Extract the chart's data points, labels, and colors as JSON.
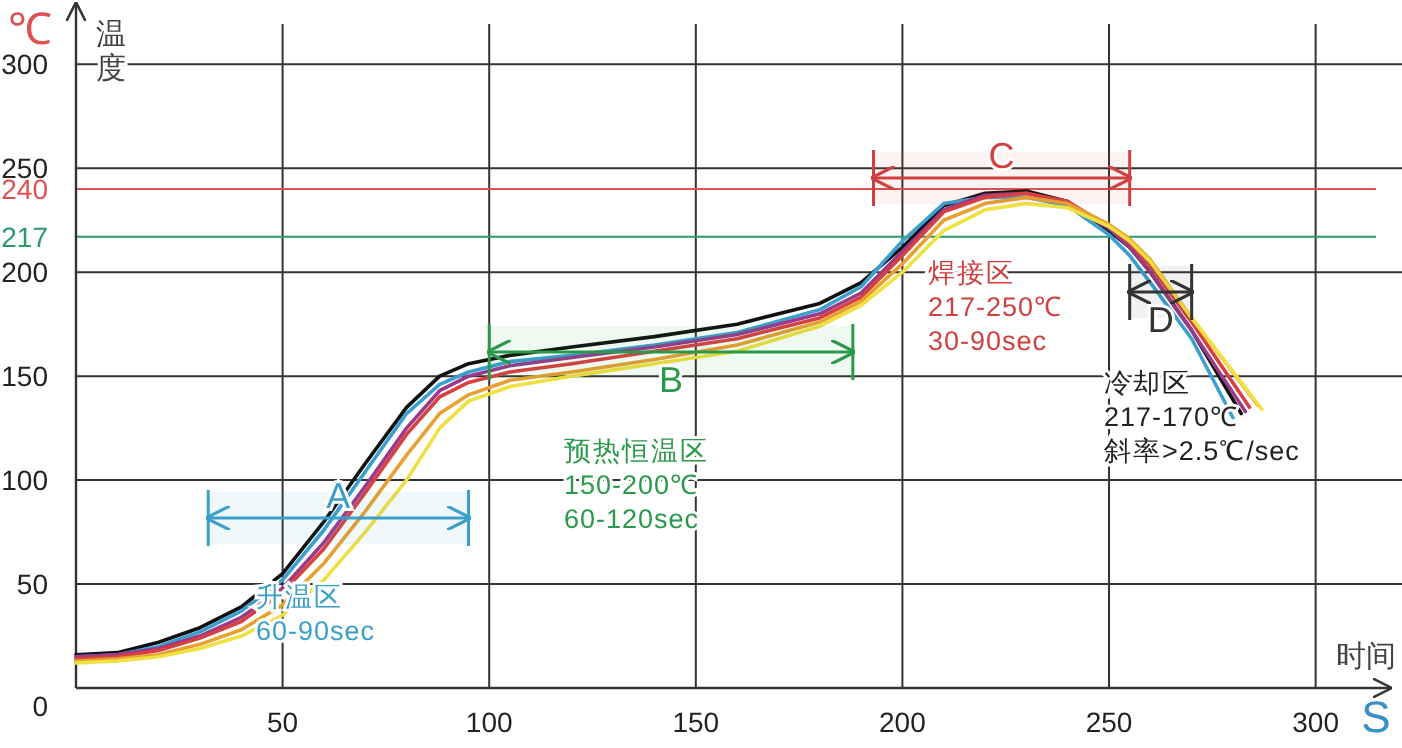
{
  "chart_data": {
    "type": "line",
    "xlabel": "时间",
    "ylabel": "温度",
    "xlim": [
      0,
      318
    ],
    "ylim": [
      0,
      329
    ],
    "xticks": [
      50,
      100,
      150,
      200,
      250,
      300
    ],
    "yticks": [
      0,
      50,
      100,
      150,
      200,
      250,
      300
    ],
    "grid": true,
    "legend": false,
    "marker": "none",
    "line_style": "solid",
    "series": [
      {
        "color": "#111111",
        "x": [
          0,
          10,
          20,
          30,
          40,
          50,
          60,
          70,
          80,
          88,
          95,
          105,
          120,
          140,
          160,
          180,
          190,
          200,
          210,
          220,
          230,
          240,
          250,
          255,
          260,
          270,
          282
        ],
        "values": [
          16,
          17,
          22,
          29,
          39,
          55,
          80,
          108,
          135,
          150,
          156,
          160,
          164,
          169,
          175,
          185,
          195,
          212,
          232,
          238,
          239,
          234,
          220,
          212,
          200,
          172,
          132
        ]
      },
      {
        "color": "#3b9fd0",
        "x": [
          0,
          10,
          20,
          30,
          40,
          50,
          60,
          70,
          80,
          88,
          95,
          105,
          120,
          140,
          160,
          180,
          190,
          200,
          210,
          220,
          230,
          240,
          250,
          255,
          260,
          270,
          280
        ],
        "values": [
          15,
          16,
          20,
          27,
          37,
          52,
          76,
          104,
          132,
          146,
          152,
          157,
          160,
          165,
          171,
          182,
          193,
          215,
          233,
          236,
          236,
          232,
          218,
          208,
          195,
          168,
          130
        ]
      },
      {
        "color": "#9a3a8a",
        "x": [
          0,
          10,
          20,
          30,
          40,
          50,
          60,
          70,
          80,
          88,
          95,
          105,
          120,
          140,
          160,
          180,
          190,
          200,
          210,
          220,
          230,
          240,
          250,
          255,
          260,
          270,
          283
        ],
        "values": [
          15,
          16,
          19,
          25,
          34,
          48,
          70,
          97,
          125,
          143,
          150,
          155,
          159,
          164,
          170,
          180,
          190,
          210,
          230,
          237,
          238,
          233,
          221,
          212,
          200,
          172,
          133
        ]
      },
      {
        "color": "#d84040",
        "x": [
          0,
          10,
          20,
          30,
          40,
          50,
          60,
          70,
          80,
          88,
          95,
          105,
          120,
          140,
          160,
          180,
          190,
          200,
          210,
          220,
          230,
          240,
          250,
          255,
          260,
          270,
          284
        ],
        "values": [
          14,
          15,
          18,
          24,
          32,
          46,
          67,
          94,
          122,
          140,
          147,
          152,
          156,
          162,
          168,
          178,
          188,
          208,
          229,
          236,
          238,
          234,
          222,
          214,
          203,
          176,
          135
        ]
      },
      {
        "color": "#e8a030",
        "x": [
          0,
          10,
          20,
          30,
          40,
          50,
          60,
          70,
          80,
          88,
          95,
          105,
          120,
          140,
          160,
          180,
          190,
          200,
          210,
          220,
          230,
          240,
          250,
          255,
          260,
          270,
          286
        ],
        "values": [
          13,
          14,
          16,
          21,
          28,
          40,
          60,
          85,
          112,
          132,
          141,
          148,
          152,
          158,
          165,
          176,
          186,
          204,
          225,
          233,
          236,
          233,
          223,
          216,
          206,
          178,
          136
        ]
      },
      {
        "color": "#f0e040",
        "x": [
          0,
          10,
          20,
          30,
          40,
          50,
          60,
          70,
          80,
          88,
          95,
          105,
          120,
          140,
          160,
          180,
          190,
          200,
          210,
          220,
          230,
          240,
          250,
          255,
          260,
          270,
          287
        ],
        "values": [
          12,
          13,
          15,
          19,
          25,
          35,
          52,
          75,
          100,
          125,
          138,
          145,
          150,
          156,
          162,
          174,
          184,
          200,
          220,
          230,
          233,
          231,
          222,
          215,
          205,
          178,
          134
        ]
      }
    ],
    "ref_lines": [
      {
        "axis": "y",
        "value": 240,
        "label": "240",
        "color": "#e05050"
      },
      {
        "axis": "y",
        "value": 217,
        "label": "217",
        "color": "#2a9a6a"
      }
    ],
    "bands": [
      {
        "axis": "x",
        "from": 32,
        "to": 95,
        "label": "A",
        "color": "#3a9fc8"
      },
      {
        "axis": "x",
        "from": 100,
        "to": 188,
        "label": "B",
        "color": "#2a9a4a"
      },
      {
        "axis": "x",
        "from": 193,
        "to": 255,
        "label": "C",
        "color": "#d04040"
      },
      {
        "axis": "x",
        "from": 255,
        "to": 270,
        "label": "D",
        "color": "#333333"
      }
    ],
    "annotations": [
      "升温区\n60-90sec",
      "预热恒温区\n150-200℃\n60-120sec",
      "焊接区\n217-250℃\n30-90sec",
      "冷却区\n217-170℃\n斜率>2.5℃/sec",
      "℃",
      "S"
    ]
  }
}
